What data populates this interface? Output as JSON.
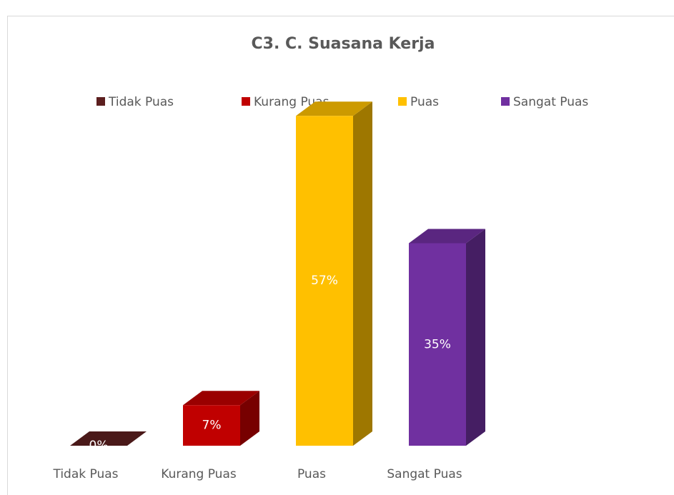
{
  "chart_data": {
    "type": "bar3d",
    "title": "C3. C. Suasana Kerja",
    "categories": [
      "Tidak Puas",
      "Kurang Puas",
      "Puas",
      "Sangat Puas"
    ],
    "values": [
      0,
      7,
      57,
      35
    ],
    "value_labels": [
      "0%",
      "7%",
      "57%",
      "35%"
    ],
    "colors": [
      "#5c1f1f",
      "#c00000",
      "#ffc000",
      "#7030a0"
    ],
    "legend": "top"
  }
}
